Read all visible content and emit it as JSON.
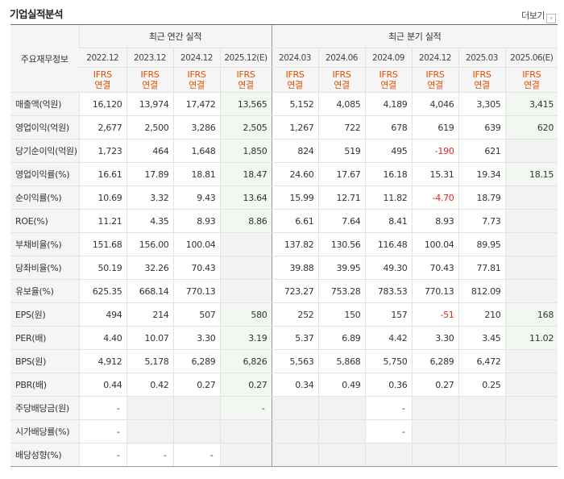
{
  "title": "기업실적분석",
  "more_label": "더보기",
  "row_header_label": "주요재무정보",
  "annual_label": "최근 연간 실적",
  "quarterly_label": "최근 분기 실적",
  "columns": [
    {
      "period": "2022.12",
      "ifrs": "IFRS",
      "basis": "연결",
      "est": false
    },
    {
      "period": "2023.12",
      "ifrs": "IFRS",
      "basis": "연결",
      "est": false
    },
    {
      "period": "2024.12",
      "ifrs": "IFRS",
      "basis": "연결",
      "est": false
    },
    {
      "period": "2025.12(E)",
      "ifrs": "IFRS",
      "basis": "연결",
      "est": true
    },
    {
      "period": "2024.03",
      "ifrs": "IFRS",
      "basis": "연결",
      "est": false
    },
    {
      "period": "2024.06",
      "ifrs": "IFRS",
      "basis": "연결",
      "est": false
    },
    {
      "period": "2024.09",
      "ifrs": "IFRS",
      "basis": "연결",
      "est": false
    },
    {
      "period": "2024.12",
      "ifrs": "IFRS",
      "basis": "연결",
      "est": false
    },
    {
      "period": "2025.03",
      "ifrs": "IFRS",
      "basis": "연결",
      "est": false
    },
    {
      "period": "2025.06(E)",
      "ifrs": "IFRS",
      "basis": "연결",
      "est": true
    }
  ],
  "rows": [
    {
      "label": "매출액(억원)",
      "values": [
        "16,120",
        "13,974",
        "17,472",
        "13,565",
        "5,152",
        "4,085",
        "4,189",
        "4,046",
        "3,305",
        "3,415"
      ]
    },
    {
      "label": "영업이익(억원)",
      "values": [
        "2,677",
        "2,500",
        "3,286",
        "2,505",
        "1,267",
        "722",
        "678",
        "619",
        "639",
        "620"
      ]
    },
    {
      "label": "당기순이익(억원)",
      "values": [
        "1,723",
        "464",
        "1,648",
        "1,850",
        "824",
        "519",
        "495",
        "-190",
        "621",
        ""
      ]
    },
    {
      "label": "영업이익률(%)",
      "values": [
        "16.61",
        "17.89",
        "18.81",
        "18.47",
        "24.60",
        "17.67",
        "16.18",
        "15.31",
        "19.34",
        "18.15"
      ]
    },
    {
      "label": "순이익률(%)",
      "values": [
        "10.69",
        "3.32",
        "9.43",
        "13.64",
        "15.99",
        "12.71",
        "11.82",
        "-4.70",
        "18.79",
        ""
      ]
    },
    {
      "label": "ROE(%)",
      "values": [
        "11.21",
        "4.35",
        "8.93",
        "8.86",
        "6.61",
        "7.64",
        "8.41",
        "8.93",
        "7.73",
        ""
      ]
    },
    {
      "label": "부채비율(%)",
      "values": [
        "151.68",
        "156.00",
        "100.04",
        "",
        "137.82",
        "130.56",
        "116.48",
        "100.04",
        "89.95",
        ""
      ]
    },
    {
      "label": "당좌비율(%)",
      "values": [
        "50.19",
        "32.26",
        "70.43",
        "",
        "39.88",
        "39.95",
        "49.30",
        "70.43",
        "77.81",
        ""
      ]
    },
    {
      "label": "유보율(%)",
      "values": [
        "625.35",
        "668.14",
        "770.13",
        "",
        "723.27",
        "753.28",
        "783.53",
        "770.13",
        "812.09",
        ""
      ]
    },
    {
      "label": "EPS(원)",
      "values": [
        "494",
        "214",
        "507",
        "580",
        "252",
        "150",
        "157",
        "-51",
        "210",
        "168"
      ]
    },
    {
      "label": "PER(배)",
      "values": [
        "4.40",
        "10.07",
        "3.30",
        "3.19",
        "5.37",
        "6.89",
        "4.42",
        "3.30",
        "3.45",
        "11.02"
      ]
    },
    {
      "label": "BPS(원)",
      "values": [
        "4,912",
        "5,178",
        "6,289",
        "6,826",
        "5,563",
        "5,868",
        "5,750",
        "6,289",
        "6,472",
        ""
      ]
    },
    {
      "label": "PBR(배)",
      "values": [
        "0.44",
        "0.42",
        "0.27",
        "0.27",
        "0.34",
        "0.49",
        "0.36",
        "0.27",
        "0.25",
        ""
      ]
    },
    {
      "label": "주당배당금(원)",
      "values": [
        "-",
        "",
        "",
        "-",
        "",
        "",
        "-",
        "",
        "",
        ""
      ]
    },
    {
      "label": "시가배당률(%)",
      "values": [
        "-",
        "",
        "",
        "",
        "",
        "",
        "-",
        "",
        "",
        ""
      ]
    },
    {
      "label": "배당성향(%)",
      "values": [
        "-",
        "-",
        "-",
        "",
        "",
        "",
        "",
        "",
        "",
        ""
      ]
    }
  ],
  "colors": {
    "ifrs": "#e15000",
    "negative": "#e0251b",
    "estimate_bg": "#f2f7f2",
    "header_bg": "#f5f5f5"
  }
}
